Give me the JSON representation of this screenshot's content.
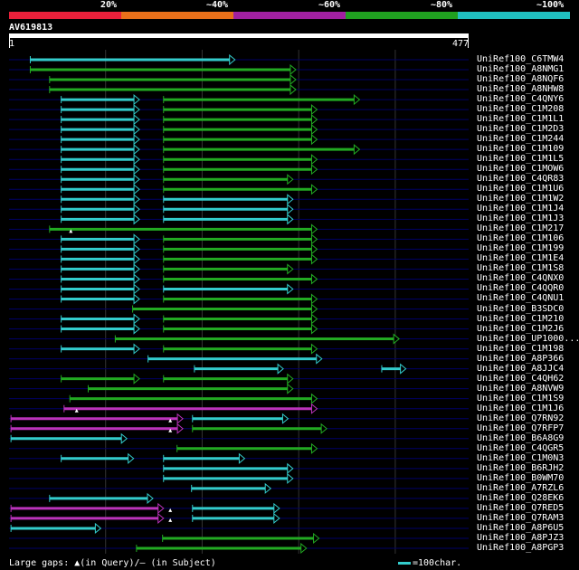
{
  "legend": {
    "segments": [
      {
        "label": "20%",
        "color": "#e8203a"
      },
      {
        "label": "~40%",
        "color": "#e8701a"
      },
      {
        "label": "~60%",
        "color": "#a020a0"
      },
      {
        "label": "~80%",
        "color": "#20a020"
      },
      {
        "label": "~100%",
        "color": "#20c0c0"
      }
    ]
  },
  "query": {
    "name": "AV619813",
    "start": "1",
    "end": "477",
    "length": 477
  },
  "colors": {
    "cyan": "#33cccc",
    "green": "#22aa22",
    "magenta": "#bb33bb",
    "white": "#ffffff",
    "grid": "#333333",
    "rowline": "#000066"
  },
  "hits": [
    {
      "name": "UniRef100_C6TMW4",
      "segs": [
        [
          23,
          235,
          "cyan"
        ]
      ]
    },
    {
      "name": "UniRef100_A8NMG1",
      "segs": [
        [
          23,
          298,
          "green"
        ]
      ]
    },
    {
      "name": "UniRef100_A8NQF6",
      "segs": [
        [
          43,
          298,
          "green"
        ]
      ]
    },
    {
      "name": "UniRef100_A8NHW8",
      "segs": [
        [
          43,
          298,
          "green"
        ]
      ]
    },
    {
      "name": "UniRef100_C4QNY6",
      "segs": [
        [
          55,
          136,
          "cyan"
        ],
        [
          161,
          364,
          "green"
        ]
      ]
    },
    {
      "name": "UniRef100_C1M208",
      "segs": [
        [
          55,
          136,
          "cyan"
        ],
        [
          161,
          320,
          "green"
        ]
      ]
    },
    {
      "name": "UniRef100_C1M1L1",
      "segs": [
        [
          55,
          136,
          "cyan"
        ],
        [
          161,
          320,
          "green"
        ]
      ]
    },
    {
      "name": "UniRef100_C1M2D3",
      "segs": [
        [
          55,
          136,
          "cyan"
        ],
        [
          161,
          320,
          "green"
        ]
      ]
    },
    {
      "name": "UniRef100_C1M244",
      "segs": [
        [
          55,
          136,
          "cyan"
        ],
        [
          161,
          320,
          "green"
        ]
      ]
    },
    {
      "name": "UniRef100_C1M109",
      "segs": [
        [
          55,
          136,
          "cyan"
        ],
        [
          161,
          364,
          "green"
        ]
      ]
    },
    {
      "name": "UniRef100_C1M1L5",
      "segs": [
        [
          55,
          136,
          "cyan"
        ],
        [
          161,
          320,
          "green"
        ]
      ]
    },
    {
      "name": "UniRef100_C1MOW6",
      "segs": [
        [
          55,
          136,
          "cyan"
        ],
        [
          161,
          320,
          "green"
        ]
      ]
    },
    {
      "name": "UniRef100_C4QR83",
      "segs": [
        [
          55,
          136,
          "cyan"
        ],
        [
          161,
          295,
          "green"
        ]
      ]
    },
    {
      "name": "UniRef100_C1M1U6",
      "segs": [
        [
          55,
          136,
          "cyan"
        ],
        [
          161,
          320,
          "green"
        ]
      ]
    },
    {
      "name": "UniRef100_C1M1W2",
      "segs": [
        [
          55,
          136,
          "cyan"
        ],
        [
          161,
          295,
          "cyan"
        ]
      ]
    },
    {
      "name": "UniRef100_C1M1J4",
      "segs": [
        [
          55,
          136,
          "cyan"
        ],
        [
          161,
          295,
          "cyan"
        ]
      ]
    },
    {
      "name": "UniRef100_C1M1J3",
      "segs": [
        [
          55,
          136,
          "cyan"
        ],
        [
          161,
          295,
          "cyan"
        ]
      ]
    },
    {
      "name": "UniRef100_C1M217",
      "segs": [
        [
          43,
          320,
          "green"
        ]
      ],
      "markers": [
        65
      ]
    },
    {
      "name": "UniRef100_C1M106",
      "segs": [
        [
          55,
          136,
          "cyan"
        ],
        [
          161,
          320,
          "green"
        ]
      ]
    },
    {
      "name": "UniRef100_C1M199",
      "segs": [
        [
          55,
          136,
          "cyan"
        ],
        [
          161,
          320,
          "green"
        ]
      ]
    },
    {
      "name": "UniRef100_C1M1E4",
      "segs": [
        [
          55,
          136,
          "cyan"
        ],
        [
          161,
          320,
          "green"
        ]
      ]
    },
    {
      "name": "UniRef100_C1M1S8",
      "segs": [
        [
          55,
          136,
          "cyan"
        ],
        [
          161,
          295,
          "green"
        ]
      ]
    },
    {
      "name": "UniRef100_C4QNX0",
      "segs": [
        [
          55,
          136,
          "cyan"
        ],
        [
          161,
          320,
          "green"
        ]
      ]
    },
    {
      "name": "UniRef100_C4QQR0",
      "segs": [
        [
          55,
          136,
          "cyan"
        ],
        [
          161,
          295,
          "cyan"
        ]
      ]
    },
    {
      "name": "UniRef100_C4QNU1",
      "segs": [
        [
          55,
          136,
          "cyan"
        ],
        [
          161,
          320,
          "green"
        ]
      ]
    },
    {
      "name": "UniRef100_B3SDC0",
      "segs": [
        [
          129,
          320,
          "green"
        ]
      ]
    },
    {
      "name": "UniRef100_C1M210",
      "segs": [
        [
          55,
          136,
          "cyan"
        ],
        [
          161,
          320,
          "green"
        ]
      ]
    },
    {
      "name": "UniRef100_C1M2J6",
      "segs": [
        [
          55,
          136,
          "cyan"
        ],
        [
          161,
          320,
          "green"
        ]
      ]
    },
    {
      "name": "UniRef100_UP1000...",
      "segs": [
        [
          111,
          405,
          "green"
        ]
      ]
    },
    {
      "name": "UniRef100_C1M198",
      "segs": [
        [
          55,
          136,
          "cyan"
        ],
        [
          161,
          320,
          "green"
        ]
      ]
    },
    {
      "name": "UniRef100_A8P366",
      "segs": [
        [
          145,
          325,
          "cyan"
        ]
      ]
    },
    {
      "name": "UniRef100_A8JJC4",
      "segs": [
        [
          193,
          285,
          "cyan"
        ],
        [
          387,
          412,
          "cyan"
        ]
      ]
    },
    {
      "name": "UniRef100_C4QH62",
      "segs": [
        [
          55,
          136,
          "green"
        ],
        [
          161,
          295,
          "green"
        ]
      ]
    },
    {
      "name": "UniRef100_A8NVW9",
      "segs": [
        [
          83,
          295,
          "green"
        ]
      ]
    },
    {
      "name": "UniRef100_C1M1S9",
      "segs": [
        [
          64,
          320,
          "green"
        ]
      ]
    },
    {
      "name": "UniRef100_C1M1J6",
      "segs": [
        [
          58,
          320,
          "magenta"
        ]
      ],
      "markers": [
        71
      ]
    },
    {
      "name": "UniRef100_Q7RN92",
      "segs": [
        [
          3,
          181,
          "magenta"
        ],
        [
          191,
          290,
          "cyan"
        ]
      ],
      "markers": [
        168
      ]
    },
    {
      "name": "UniRef100_Q7RFP7",
      "segs": [
        [
          3,
          181,
          "magenta"
        ],
        [
          191,
          330,
          "green"
        ]
      ],
      "markers": [
        168
      ]
    },
    {
      "name": "UniRef100_B6A8G9",
      "segs": [
        [
          3,
          123,
          "cyan"
        ]
      ]
    },
    {
      "name": "UniRef100_C4QGR5",
      "segs": [
        [
          175,
          320,
          "green"
        ]
      ]
    },
    {
      "name": "UniRef100_C1M0N3",
      "segs": [
        [
          55,
          130,
          "cyan"
        ],
        [
          161,
          245,
          "cyan"
        ]
      ]
    },
    {
      "name": "UniRef100_B6RJH2",
      "segs": [
        [
          161,
          295,
          "cyan"
        ]
      ]
    },
    {
      "name": "UniRef100_B0WM70",
      "segs": [
        [
          161,
          295,
          "cyan"
        ]
      ]
    },
    {
      "name": "UniRef100_A7RZL6",
      "segs": [
        [
          190,
          272,
          "cyan"
        ]
      ]
    },
    {
      "name": "UniRef100_Q28EK6",
      "segs": [
        [
          43,
          150,
          "cyan"
        ]
      ]
    },
    {
      "name": "UniRef100_Q7RED5",
      "segs": [
        [
          3,
          161,
          "magenta"
        ],
        [
          191,
          281,
          "cyan"
        ]
      ],
      "markers": [
        168
      ]
    },
    {
      "name": "UniRef100_Q7RAM3",
      "segs": [
        [
          3,
          161,
          "magenta"
        ],
        [
          191,
          281,
          "cyan"
        ]
      ],
      "markers": [
        168
      ]
    },
    {
      "name": "UniRef100_A8P6U5",
      "segs": [
        [
          3,
          96,
          "cyan"
        ]
      ]
    },
    {
      "name": "UniRef100_A8PJZ3",
      "segs": [
        [
          160,
          322,
          "green"
        ]
      ]
    },
    {
      "name": "UniRef100_A8PGP3",
      "segs": [
        [
          133,
          309,
          "green"
        ]
      ]
    }
  ],
  "footer": {
    "text": "Large gaps: ▲(in Query)/– (in Subject)",
    "scale_label": "=100char."
  }
}
